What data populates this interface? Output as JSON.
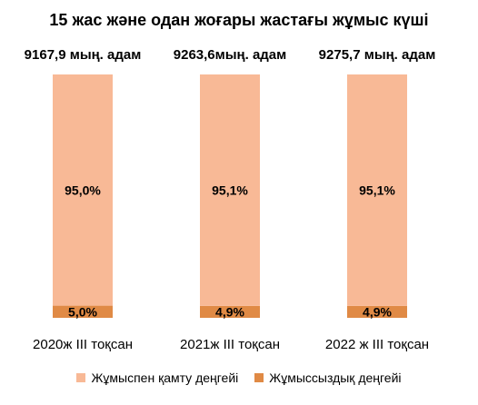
{
  "chart_data": {
    "type": "bar",
    "stacked": true,
    "title": "15 жас және одан жоғары жастағы жұмыс күші",
    "categories": [
      "2020ж III тоқсан",
      "2021ж III тоқсан",
      "2022 ж III тоқсан"
    ],
    "totals": [
      "9167,9 мың. адам",
      "9263,6мың. адам",
      "9275,7 мың. адам"
    ],
    "series": [
      {
        "name": "Жұмыссыздық деңгейі",
        "values": [
          5.0,
          4.9,
          4.9
        ],
        "labels": [
          "5,0%",
          "4,9%",
          "4,9%"
        ],
        "color": "#e08a45"
      },
      {
        "name": "Жұмыспен қамту деңгейі",
        "values": [
          95.0,
          95.1,
          95.1
        ],
        "labels": [
          "95,0%",
          "95,1%",
          "95,1%"
        ],
        "color": "#f8b996"
      }
    ],
    "ylim": [
      0,
      100
    ],
    "xlabel": "",
    "ylabel": "",
    "grid": false,
    "legend_position": "bottom"
  }
}
